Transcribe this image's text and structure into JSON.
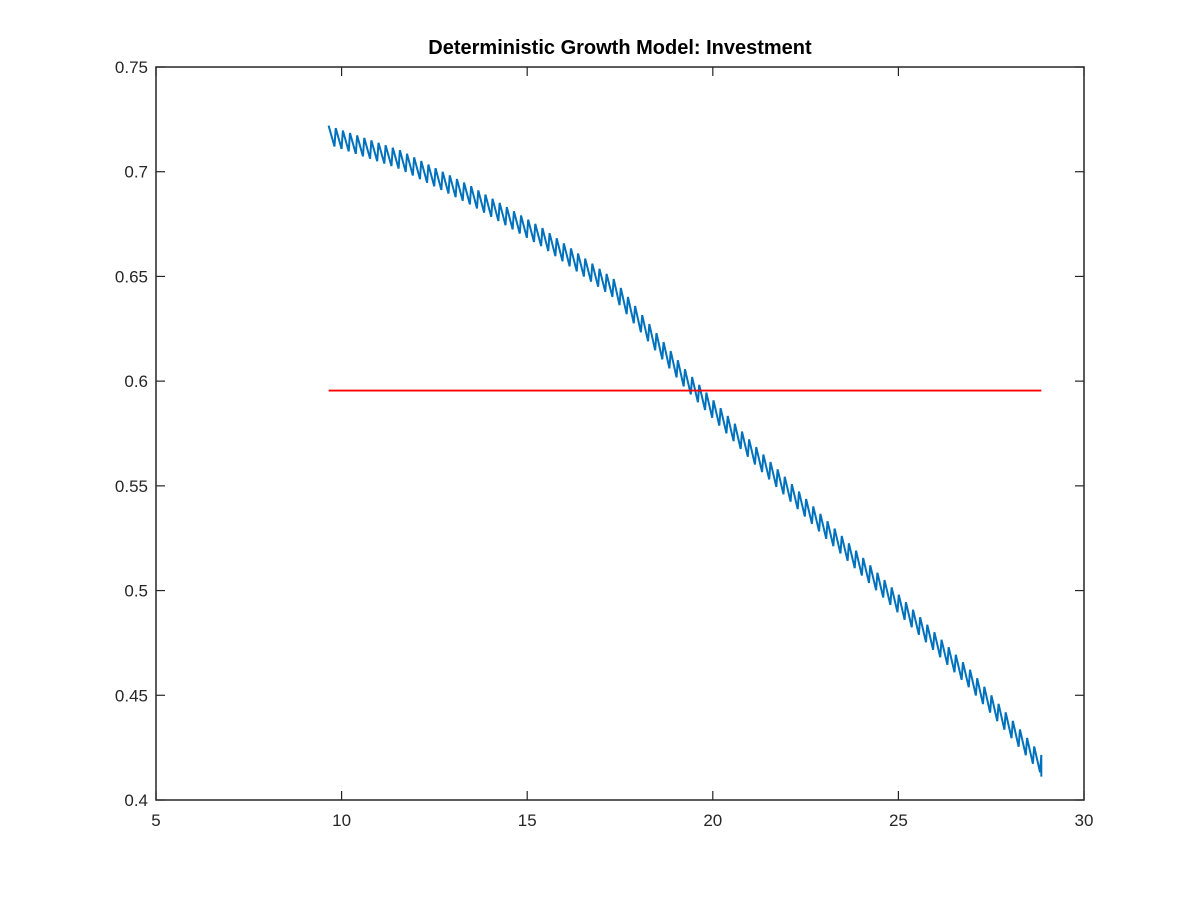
{
  "chart_data": {
    "type": "line",
    "title": "Deterministic Growth Model: Investment",
    "xlabel": "",
    "ylabel": "",
    "xlim": [
      5,
      30
    ],
    "ylim": [
      0.4,
      0.75
    ],
    "xticks": [
      5,
      10,
      15,
      20,
      25,
      30
    ],
    "yticks": [
      0.4,
      0.45,
      0.5,
      0.55,
      0.6,
      0.65,
      0.7,
      0.75
    ],
    "xtick_labels": [
      "5",
      "10",
      "15",
      "20",
      "25",
      "30"
    ],
    "ytick_labels": [
      "0.4",
      "0.45",
      "0.5",
      "0.55",
      "0.6",
      "0.65",
      "0.7",
      "0.75"
    ],
    "grid": false,
    "legend": "none",
    "series": [
      {
        "color": "#0072bd",
        "style": "sawtooth",
        "x_start": 9.65,
        "x_end": 28.85,
        "teeth": 100,
        "amplitude": 0.0045,
        "x": [
          9.65,
          11.57,
          13.49,
          15.41,
          17.33,
          19.25,
          21.17,
          23.09,
          25.01,
          26.93,
          28.85
        ],
        "y": [
          0.7175,
          0.7058,
          0.6886,
          0.6686,
          0.6443,
          0.6012,
          0.564,
          0.5286,
          0.4935,
          0.4577,
          0.417
        ]
      },
      {
        "color": "#ff0000",
        "style": "line",
        "x": [
          9.65,
          28.85
        ],
        "y": [
          0.5955,
          0.5955
        ]
      }
    ]
  }
}
